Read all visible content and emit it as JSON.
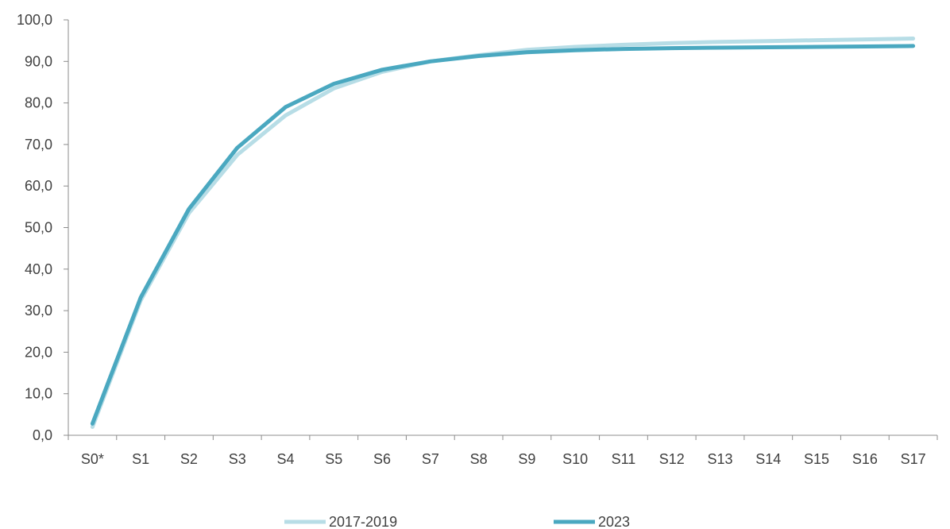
{
  "chart_data": {
    "type": "line",
    "title": "",
    "xlabel": "",
    "ylabel": "",
    "categories": [
      "S0*",
      "S1",
      "S2",
      "S3",
      "S4",
      "S5",
      "S6",
      "S7",
      "S8",
      "S9",
      "S10",
      "S11",
      "S12",
      "S13",
      "S14",
      "S15",
      "S16",
      "S17"
    ],
    "ylim": [
      0,
      100
    ],
    "yticks": [
      "0,0",
      "10,0",
      "20,0",
      "30,0",
      "40,0",
      "50,0",
      "60,0",
      "70,0",
      "80,0",
      "90,0",
      "100,0"
    ],
    "grid": false,
    "legend_position": "bottom",
    "series": [
      {
        "name": "2017-2019",
        "color": "#b7dde6",
        "values": [
          2.0,
          32.5,
          53.5,
          67.5,
          77.0,
          83.5,
          87.5,
          90.0,
          91.5,
          92.8,
          93.5,
          94.0,
          94.4,
          94.7,
          94.9,
          95.1,
          95.3,
          95.5
        ]
      },
      {
        "name": "2023",
        "color": "#4aa8c0",
        "values": [
          2.8,
          33.2,
          54.5,
          69.2,
          79.0,
          84.6,
          88.0,
          90.0,
          91.3,
          92.2,
          92.7,
          93.0,
          93.2,
          93.3,
          93.4,
          93.5,
          93.6,
          93.7
        ]
      }
    ]
  }
}
